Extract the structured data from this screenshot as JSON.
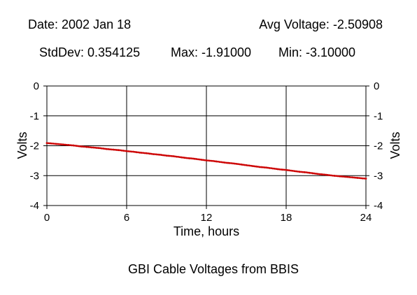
{
  "header": {
    "date": "Date: 2002 Jan 18",
    "avg": "Avg Voltage: -2.50908",
    "stddev": "StdDev: 0.354125",
    "max": "Max: -1.91000",
    "min": "Min: -3.10000"
  },
  "chart_data": {
    "type": "scatter",
    "title": "GBI Cable Voltages from BBIS",
    "xlabel": "Time, hours",
    "ylabel": "Volts",
    "xlim": [
      0,
      24
    ],
    "ylim": [
      -4,
      0
    ],
    "x_ticks": [
      "0",
      "6",
      "12",
      "18",
      "24"
    ],
    "y_ticks": [
      "0",
      "-1",
      "-2",
      "-3",
      "-4"
    ],
    "grid": true,
    "series_color": "#cc0000",
    "series": [
      {
        "x": [
          0.0,
          0.5,
          1.0,
          1.5,
          2.0,
          2.5,
          3.0,
          3.5,
          4.0,
          4.5,
          5.0,
          5.5,
          6.0,
          6.5,
          7.0,
          7.5,
          8.0,
          8.5,
          9.0,
          9.5,
          10.0,
          10.5,
          11.0,
          11.5,
          12.0,
          12.5,
          13.0,
          13.5,
          14.0,
          14.5,
          15.0,
          15.5,
          16.0,
          16.5,
          17.0,
          17.5,
          18.0,
          18.5,
          19.0,
          19.5,
          20.0,
          20.5,
          21.0,
          21.5,
          22.0,
          22.5,
          23.0,
          23.5,
          24.0
        ],
        "y": [
          -1.91,
          -1.93,
          -1.95,
          -1.97,
          -1.99,
          -2.02,
          -2.04,
          -2.06,
          -2.08,
          -2.11,
          -2.13,
          -2.15,
          -2.18,
          -2.2,
          -2.23,
          -2.25,
          -2.28,
          -2.3,
          -2.33,
          -2.35,
          -2.38,
          -2.41,
          -2.43,
          -2.46,
          -2.49,
          -2.51,
          -2.54,
          -2.57,
          -2.59,
          -2.62,
          -2.65,
          -2.68,
          -2.71,
          -2.73,
          -2.76,
          -2.79,
          -2.81,
          -2.84,
          -2.87,
          -2.89,
          -2.92,
          -2.95,
          -2.97,
          -3.0,
          -3.02,
          -3.04,
          -3.06,
          -3.08,
          -3.1
        ]
      }
    ]
  }
}
